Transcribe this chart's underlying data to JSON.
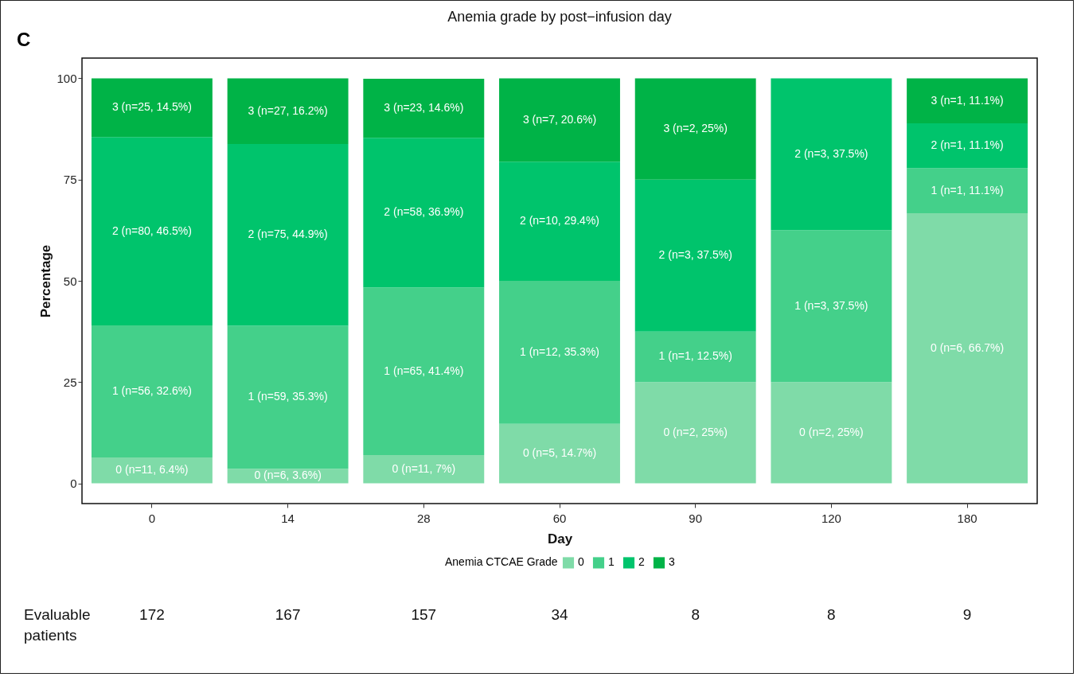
{
  "chart_data": {
    "type": "bar",
    "title": "Anemia grade by post−infusion day",
    "xlabel": "Day",
    "ylabel": "Percentage",
    "legend_title": "Anemia CTCAE Grade",
    "categories": [
      "0",
      "14",
      "28",
      "60",
      "90",
      "120",
      "180"
    ],
    "stacked": true,
    "ylim": [
      -5,
      105
    ],
    "yticks": [
      0,
      25,
      50,
      75,
      100
    ],
    "grid": false,
    "legend": "bottom",
    "series": [
      {
        "name": "0",
        "color": "#7fdba8",
        "values": [
          6.4,
          3.6,
          7,
          14.7,
          25,
          25,
          66.7
        ],
        "value_labels": [
          "0 (n=11, 6.4%)",
          "0 (n=6, 3.6%)",
          "0 (n=11, 7%)",
          "0 (n=5, 14.7%)",
          "0 (n=2, 25%)",
          "0 (n=2, 25%)",
          "0 (n=6, 66.7%)"
        ]
      },
      {
        "name": "1",
        "color": "#44d08a",
        "values": [
          32.6,
          35.3,
          41.4,
          35.3,
          12.5,
          37.5,
          11.1
        ],
        "value_labels": [
          "1 (n=56, 32.6%)",
          "1 (n=59, 35.3%)",
          "1 (n=65, 41.4%)",
          "1 (n=12, 35.3%)",
          "1 (n=1, 12.5%)",
          "1 (n=3, 37.5%)",
          "1 (n=1, 11.1%)"
        ]
      },
      {
        "name": "2",
        "color": "#00c46c",
        "values": [
          46.5,
          44.9,
          36.9,
          29.4,
          37.5,
          37.5,
          11.1
        ],
        "value_labels": [
          "2 (n=80, 46.5%)",
          "2 (n=75, 44.9%)",
          "2 (n=58, 36.9%)",
          "2 (n=10, 29.4%)",
          "2 (n=3, 37.5%)",
          "2 (n=3, 37.5%)",
          "2 (n=1, 11.1%)"
        ]
      },
      {
        "name": "3",
        "color": "#00b347",
        "values": [
          14.5,
          16.2,
          14.6,
          20.6,
          25,
          null,
          11.1
        ],
        "value_labels": [
          "3 (n=25, 14.5%)",
          "3 (n=27, 16.2%)",
          "3 (n=23, 14.6%)",
          "3 (n=7, 20.6%)",
          "3 (n=2, 25%)",
          null,
          "3 (n=1, 11.1%)"
        ]
      }
    ],
    "annotations": [
      "C",
      "Evaluable patients",
      "172",
      "167",
      "157",
      "34",
      "8",
      "8",
      "9"
    ]
  }
}
